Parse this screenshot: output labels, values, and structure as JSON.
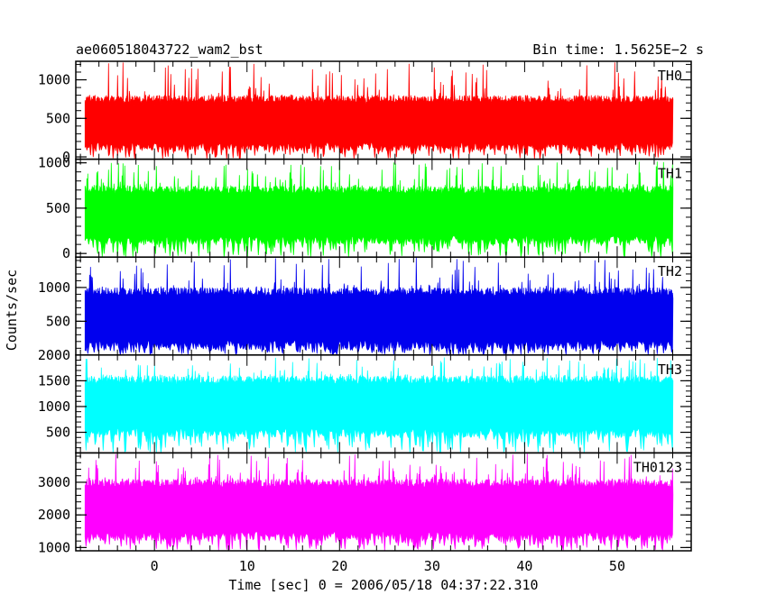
{
  "header": {
    "left_title": "ae060518043722_wam2_bst",
    "right_title": "Bin time: 1.5625E−2 s"
  },
  "chart_data": {
    "type": "line",
    "xlabel": "Time [sec] 0 = 2006/05/18 04:37:22.310",
    "ylabel": "Counts/sec",
    "xlim": [
      -8.5,
      58
    ],
    "data_x_range": [
      -7.5,
      56
    ],
    "bin_time_s": 0.015625,
    "x_ticks": [
      0,
      10,
      20,
      30,
      40,
      50
    ],
    "x_tick_labels": [
      "0",
      "10",
      "20",
      "30",
      "40",
      "50"
    ],
    "panels": [
      {
        "name": "TH0",
        "color": "#ff0000",
        "ylim": [
          -30,
          1240
        ],
        "yticks": [
          0,
          500,
          1000
        ],
        "ytick_labels": [
          "0",
          "500",
          "1000"
        ],
        "typical_range": [
          80,
          800
        ],
        "peak_max": 1240
      },
      {
        "name": "TH1",
        "color": "#00ff00",
        "ylim": [
          -40,
          1040
        ],
        "yticks": [
          0,
          500,
          1000
        ],
        "ytick_labels": [
          "0",
          "500",
          "1000"
        ],
        "typical_range": [
          100,
          750
        ],
        "peak_max": 1030
      },
      {
        "name": "TH2",
        "color": "#0000ee",
        "ylim": [
          0,
          1450
        ],
        "yticks": [
          500,
          1000
        ],
        "ytick_labels": [
          "500",
          "1000"
        ],
        "typical_range": [
          80,
          1000
        ],
        "peak_max": 1450
      },
      {
        "name": "TH3",
        "color": "#00ffff",
        "ylim": [
          100,
          2000
        ],
        "yticks": [
          500,
          1000,
          1500,
          2000
        ],
        "ytick_labels": [
          "500",
          "1000",
          "1500",
          "2000"
        ],
        "typical_range": [
          400,
          1600
        ],
        "peak_max": 1960
      },
      {
        "name": "TH0123",
        "color": "#ff00ff",
        "ylim": [
          900,
          3900
        ],
        "yticks": [
          1000,
          2000,
          3000
        ],
        "ytick_labels": [
          "1000",
          "2000",
          "3000"
        ],
        "typical_range": [
          1200,
          3100
        ],
        "peak_max": 3900
      }
    ]
  }
}
